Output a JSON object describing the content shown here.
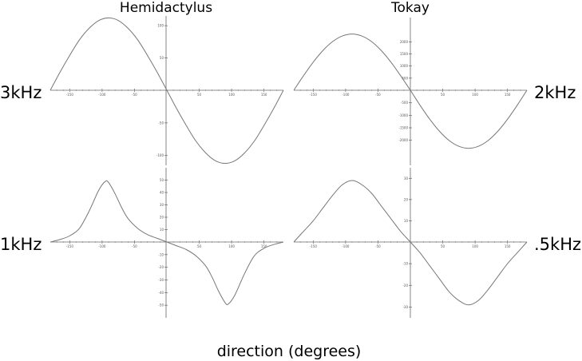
{
  "figure": {
    "xlabel": "direction (degrees)"
  },
  "chart_data": [
    {
      "type": "line",
      "title": "Hemidactylus",
      "side_label": "3kHz",
      "xlim": [
        -180,
        180
      ],
      "ylim": [
        -115,
        115
      ],
      "x_ticks": [
        -150,
        -100,
        -50,
        50,
        100,
        150
      ],
      "y_ticks": [
        -100,
        -50,
        50,
        100
      ],
      "series": [
        {
          "x": [
            -180,
            -165,
            -150,
            -135,
            -120,
            -105,
            -90,
            -75,
            -60,
            -45,
            -30,
            -15,
            0,
            15,
            30,
            45,
            60,
            75,
            90,
            105,
            120,
            135,
            150,
            165,
            180
          ],
          "y": [
            0,
            28,
            54,
            78,
            96,
            108,
            112,
            108,
            96,
            78,
            54,
            28,
            0,
            -28,
            -54,
            -78,
            -96,
            -108,
            -112,
            -108,
            -96,
            -78,
            -54,
            -28,
            0
          ]
        }
      ]
    },
    {
      "type": "line",
      "title": "Tokay",
      "side_label": "2kHz",
      "xlim": [
        -180,
        180
      ],
      "ylim": [
        -3000,
        3000
      ],
      "x_ticks": [
        -150,
        -100,
        -50,
        50,
        100,
        150
      ],
      "y_ticks": [
        -2000,
        -1500,
        -1000,
        -500,
        500,
        1000,
        1500,
        2000
      ],
      "series": [
        {
          "x": [
            -180,
            -165,
            -150,
            -135,
            -120,
            -105,
            -90,
            -75,
            -60,
            -45,
            -30,
            -15,
            0,
            15,
            30,
            45,
            60,
            75,
            90,
            105,
            120,
            135,
            150,
            165,
            180
          ],
          "y": [
            0,
            600,
            1160,
            1640,
            2010,
            2240,
            2320,
            2240,
            2010,
            1640,
            1160,
            600,
            0,
            -600,
            -1160,
            -1640,
            -2010,
            -2240,
            -2320,
            -2240,
            -2010,
            -1640,
            -1160,
            -600,
            0
          ]
        }
      ]
    },
    {
      "type": "line",
      "title": "",
      "side_label": "1kHz",
      "xlim": [
        -180,
        180
      ],
      "ylim": [
        -60,
        60
      ],
      "x_ticks": [
        -150,
        -100,
        -50,
        50,
        100,
        150
      ],
      "y_ticks": [
        -50,
        -40,
        -30,
        -20,
        -10,
        10,
        20,
        30,
        40,
        50
      ],
      "series": [
        {
          "x": [
            -180,
            -165,
            -150,
            -135,
            -120,
            -105,
            -95,
            -90,
            -80,
            -70,
            -60,
            -45,
            -30,
            -15,
            0,
            15,
            30,
            45,
            60,
            70,
            80,
            90,
            95,
            105,
            120,
            135,
            150,
            165,
            180
          ],
          "y": [
            0,
            2,
            5,
            11,
            25,
            42,
            49,
            48,
            39,
            28,
            19,
            11,
            6,
            3,
            0,
            -3,
            -6,
            -11,
            -19,
            -28,
            -39,
            -48,
            -49,
            -42,
            -25,
            -11,
            -5,
            -2,
            0
          ]
        }
      ]
    },
    {
      "type": "line",
      "title": "",
      "side_label": ".5kHz",
      "xlim": [
        -180,
        180
      ],
      "ylim": [
        -35,
        35
      ],
      "x_ticks": [
        -150,
        -100,
        -50,
        50,
        100,
        150
      ],
      "y_ticks": [
        -30,
        -20,
        -10,
        10,
        20,
        30
      ],
      "series": [
        {
          "x": [
            -180,
            -165,
            -150,
            -135,
            -120,
            -105,
            -90,
            -75,
            -60,
            -45,
            -30,
            -15,
            0,
            15,
            30,
            45,
            60,
            75,
            90,
            105,
            120,
            135,
            150,
            165,
            180
          ],
          "y": [
            0,
            5,
            10,
            16,
            22,
            27,
            29,
            27,
            23,
            17,
            11,
            5,
            0,
            -5,
            -11,
            -17,
            -23,
            -27,
            -29,
            -27,
            -22,
            -16,
            -10,
            -5,
            0
          ]
        }
      ]
    }
  ]
}
